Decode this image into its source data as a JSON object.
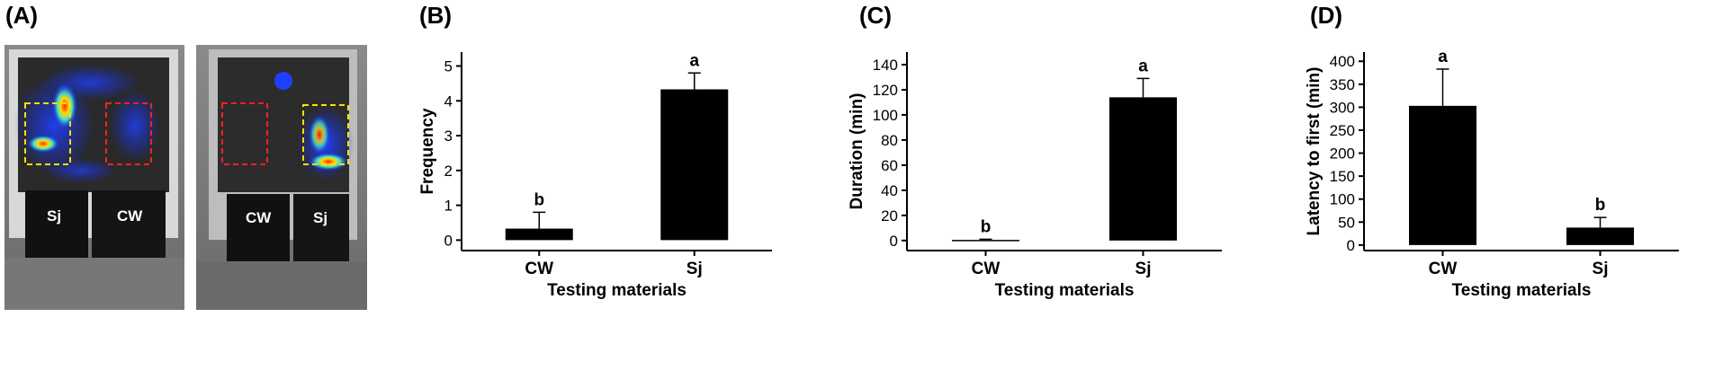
{
  "panels": {
    "a": "(A)",
    "b": "(B)",
    "c": "(C)",
    "d": "(D)"
  },
  "photos": {
    "left": {
      "label_left": "Sj",
      "label_right": "CW"
    },
    "right": {
      "label_left": "CW",
      "label_right": "Sj"
    }
  },
  "chart_data": [
    {
      "type": "bar",
      "xlabel": "Testing materials",
      "ylabel": "Frequency",
      "categories": [
        "CW",
        "Sj"
      ],
      "values": [
        0.33,
        4.33
      ],
      "errors": [
        0.47,
        0.47
      ],
      "letters": [
        "b",
        "a"
      ],
      "ylim": [
        -0.3,
        5.4
      ],
      "yticks": [
        0,
        1,
        2,
        3,
        4,
        5
      ]
    },
    {
      "type": "bar",
      "xlabel": "Testing materials",
      "ylabel": "Duration (min)",
      "categories": [
        "CW",
        "Sj"
      ],
      "values": [
        0.5,
        114
      ],
      "errors": [
        0.5,
        15
      ],
      "letters": [
        "b",
        "a"
      ],
      "ylim": [
        -8,
        150
      ],
      "yticks": [
        0,
        20,
        40,
        60,
        80,
        100,
        120,
        140
      ]
    },
    {
      "type": "bar",
      "xlabel": "Testing materials",
      "ylabel": "Latency to first (min)",
      "categories": [
        "CW",
        "Sj"
      ],
      "values": [
        303,
        38
      ],
      "errors": [
        80,
        22
      ],
      "letters": [
        "a",
        "b"
      ],
      "ylim": [
        -12,
        420
      ],
      "yticks": [
        0,
        50,
        100,
        150,
        200,
        250,
        300,
        350,
        400
      ]
    }
  ]
}
